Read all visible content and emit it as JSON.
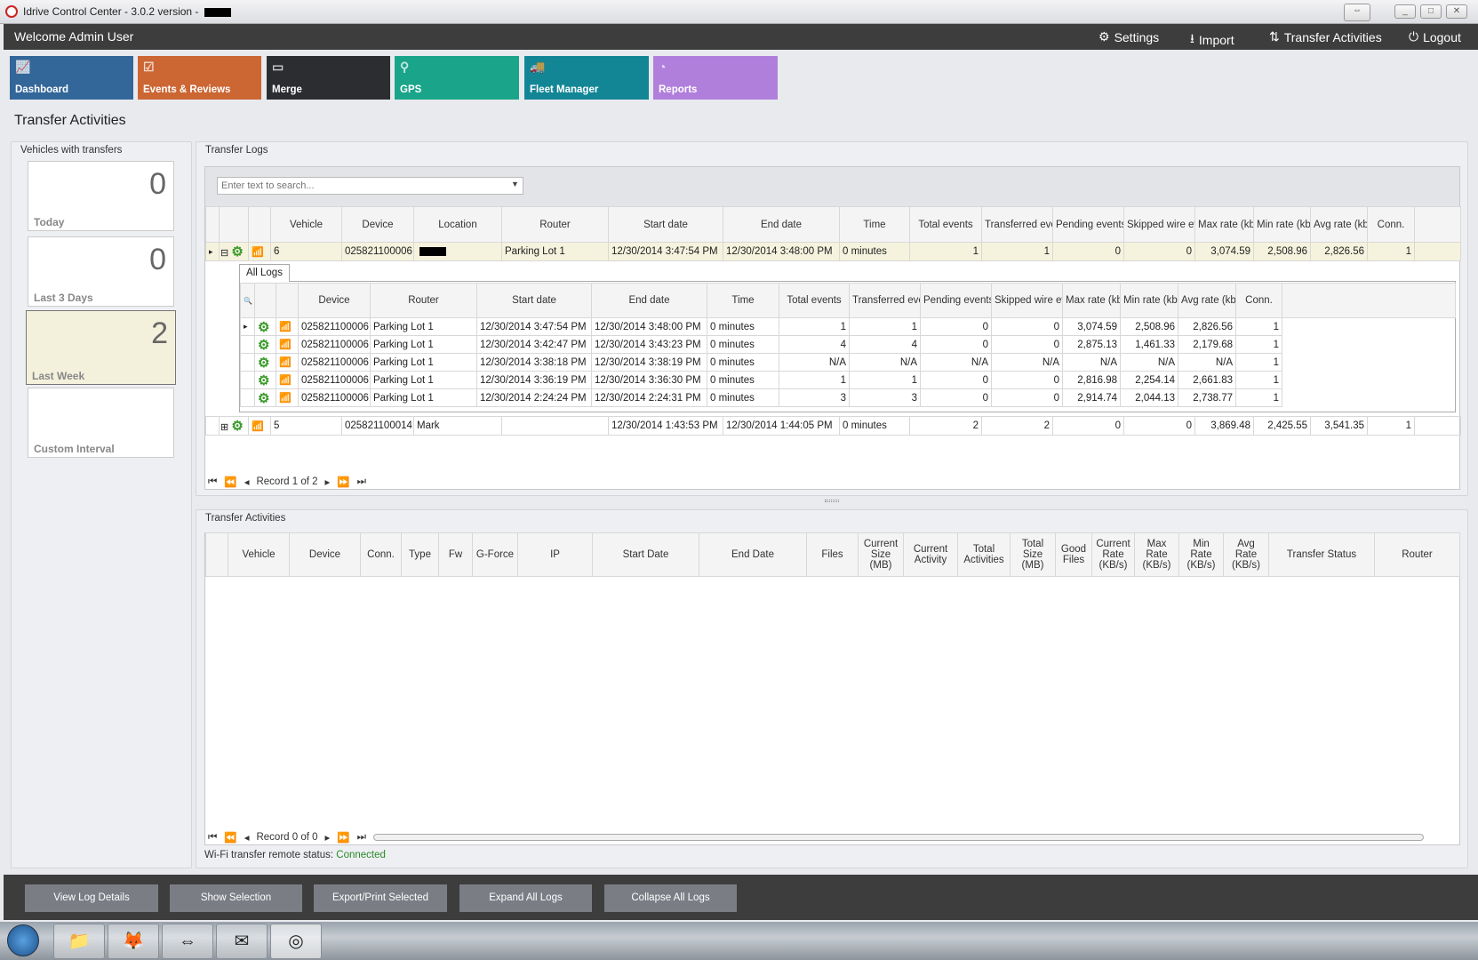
{
  "window": {
    "title": "Idrive Control Center - 3.0.2 version - "
  },
  "header": {
    "welcome": "Welcome Admin User",
    "links": [
      {
        "label": "Settings",
        "icon": "gears-icon"
      },
      {
        "label": "Import",
        "icon": "download-icon"
      },
      {
        "label": "Transfer Activities",
        "icon": "transfer-icon"
      },
      {
        "label": "Logout",
        "icon": "power-icon"
      }
    ]
  },
  "tiles": [
    {
      "label": "Dashboard",
      "color": "#336699"
    },
    {
      "label": "Events & Reviews",
      "color": "#cc6633"
    },
    {
      "label": "Merge",
      "color": "#2b2d31"
    },
    {
      "label": "GPS",
      "color": "#1aa58a"
    },
    {
      "label": "Fleet Manager",
      "color": "#138696"
    },
    {
      "label": "Reports",
      "color": "#b07fdc"
    }
  ],
  "page_title": "Transfer Activities",
  "vehicles_panel": {
    "title": "Vehicles with transfers",
    "cards": [
      {
        "count": "0",
        "label": "Today"
      },
      {
        "count": "0",
        "label": "Last 3 Days"
      },
      {
        "count": "2",
        "label": "Last Week",
        "selected": true
      },
      {
        "count": "",
        "label": "Custom Interval"
      }
    ]
  },
  "logs_panel": {
    "title": "Transfer Logs",
    "search_placeholder": "Enter text to search...",
    "columns": [
      "",
      "",
      "",
      "Vehicle",
      "Device",
      "Location",
      "Router",
      "Start date",
      "End date",
      "Time",
      "Total events",
      "Transferred events",
      "Pending events",
      "Skipped wire events",
      "Max rate (kbs)",
      "Min rate (kbs)",
      "Avg rate (kbs)",
      "Conn."
    ],
    "rows": [
      {
        "vehicle": "6",
        "device": "025821100006",
        "location": "",
        "router": "Parking Lot 1",
        "start": "12/30/2014 3:47:54 PM",
        "end": "12/30/2014 3:48:00 PM",
        "time": "0 minutes",
        "total": "1",
        "transferred": "1",
        "pending": "0",
        "skipped": "0",
        "max": "3,074.59",
        "min": "2,508.96",
        "avg": "2,826.56",
        "conn": "1",
        "expanded": true
      },
      {
        "vehicle": "5",
        "device": "025821100014",
        "location": "Mark",
        "router": "",
        "start": "12/30/2014 1:43:53 PM",
        "end": "12/30/2014 1:44:05 PM",
        "time": "0 minutes",
        "total": "2",
        "transferred": "2",
        "pending": "0",
        "skipped": "0",
        "max": "3,869.48",
        "min": "2,425.55",
        "avg": "3,541.35",
        "conn": "1",
        "expanded": false
      }
    ],
    "detail": {
      "tab": "All Logs",
      "columns": [
        "",
        "",
        "",
        "Device",
        "Router",
        "Start date",
        "End date",
        "Time",
        "Total events",
        "Transferred events",
        "Pending events",
        "Skipped wire events",
        "Max rate (kbs)",
        "Min rate (kbs)",
        "Avg rate (kbs)",
        "Conn."
      ],
      "rows": [
        {
          "device": "025821100006",
          "router": "Parking Lot 1",
          "start": "12/30/2014 3:47:54 PM",
          "end": "12/30/2014 3:48:00 PM",
          "time": "0 minutes",
          "total": "1",
          "transferred": "1",
          "pending": "0",
          "skipped": "0",
          "max": "3,074.59",
          "min": "2,508.96",
          "avg": "2,826.56",
          "conn": "1"
        },
        {
          "device": "025821100006",
          "router": "Parking Lot 1",
          "start": "12/30/2014 3:42:47 PM",
          "end": "12/30/2014 3:43:23 PM",
          "time": "0 minutes",
          "total": "4",
          "transferred": "4",
          "pending": "0",
          "skipped": "0",
          "max": "2,875.13",
          "min": "1,461.33",
          "avg": "2,179.68",
          "conn": "1"
        },
        {
          "device": "025821100006",
          "router": "Parking Lot 1",
          "start": "12/30/2014 3:38:18 PM",
          "end": "12/30/2014 3:38:19 PM",
          "time": "0 minutes",
          "total": "N/A",
          "transferred": "N/A",
          "pending": "N/A",
          "skipped": "N/A",
          "max": "N/A",
          "min": "N/A",
          "avg": "N/A",
          "conn": "1"
        },
        {
          "device": "025821100006",
          "router": "Parking Lot 1",
          "start": "12/30/2014 3:36:19 PM",
          "end": "12/30/2014 3:36:30 PM",
          "time": "0 minutes",
          "total": "1",
          "transferred": "1",
          "pending": "0",
          "skipped": "0",
          "max": "2,816.98",
          "min": "2,254.14",
          "avg": "2,661.83",
          "conn": "1"
        },
        {
          "device": "025821100006",
          "router": "Parking Lot 1",
          "start": "12/30/2014 2:24:24 PM",
          "end": "12/30/2014 2:24:31 PM",
          "time": "0 minutes",
          "total": "3",
          "transferred": "3",
          "pending": "0",
          "skipped": "0",
          "max": "2,914.74",
          "min": "2,044.13",
          "avg": "2,738.77",
          "conn": "1"
        }
      ]
    },
    "pager": "Record 1 of 2"
  },
  "activities_panel": {
    "title": "Transfer Activities",
    "columns": [
      "",
      "Vehicle",
      "Device",
      "Conn.",
      "Type",
      "Fw",
      "G-Force",
      "IP",
      "Start Date",
      "End Date",
      "Files",
      "Current Size (MB)",
      "Current Activity",
      "Total Activities",
      "Total Size (MB)",
      "Good Files",
      "Current Rate (KB/s)",
      "Max Rate (KB/s)",
      "Min Rate (KB/s)",
      "Avg Rate (KB/s)",
      "Transfer Status",
      "Router"
    ],
    "pager": "Record 0 of 0"
  },
  "status": {
    "label": "Wi-Fi transfer remote status:",
    "value": "Connected",
    "value_color": "#2a8a2a"
  },
  "buttons": [
    "View Log Details",
    "Show Selection",
    "Export/Print Selected",
    "Expand All Logs",
    "Collapse All Logs"
  ]
}
